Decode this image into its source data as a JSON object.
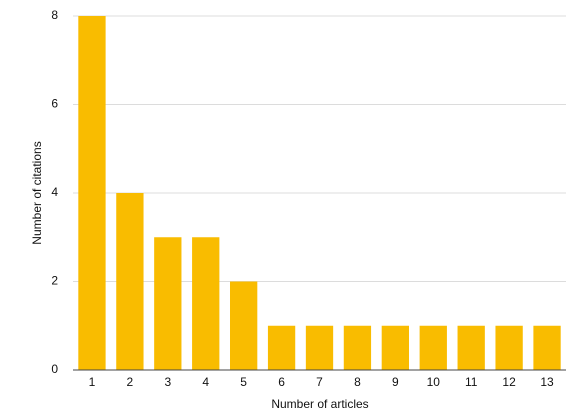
{
  "chart_data": {
    "type": "bar",
    "x_label": "Number of articles",
    "y_label": "Number of citations",
    "categories": [
      "1",
      "2",
      "3",
      "4",
      "5",
      "6",
      "7",
      "8",
      "9",
      "10",
      "11",
      "12",
      "13"
    ],
    "values": [
      8,
      4,
      3,
      3,
      2,
      1,
      1,
      1,
      1,
      1,
      1,
      1,
      1
    ],
    "color": "#f9bc00",
    "ylim": [
      0,
      8
    ],
    "yticks": [
      0,
      2,
      4,
      6,
      8
    ],
    "grid": true
  }
}
